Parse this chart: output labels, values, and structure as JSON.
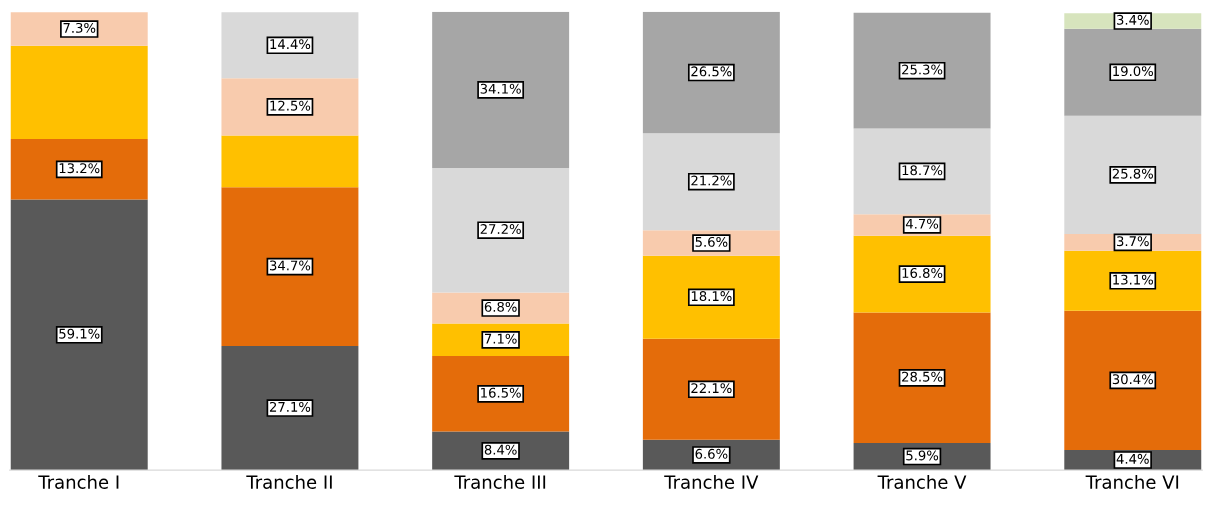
{
  "chart_data": {
    "type": "bar",
    "stacked": true,
    "categories": [
      "Tranche I",
      "Tranche II",
      "Tranche III",
      "Tranche IV",
      "Tranche V",
      "Tranche VI"
    ],
    "series": [
      {
        "color": "#595959",
        "values": [
          59.1,
          27.1,
          8.4,
          6.6,
          5.9,
          4.4
        ],
        "value_labels": [
          "59.1%",
          "27.1%",
          "8.4%",
          "6.6%",
          "5.9%",
          "4.4%"
        ]
      },
      {
        "color": "#e46c0a",
        "values": [
          13.2,
          34.7,
          16.5,
          22.1,
          28.5,
          30.4
        ],
        "value_labels": [
          "13.2%",
          "34.7%",
          "16.5%",
          "22.1%",
          "28.5%",
          "30.4%"
        ]
      },
      {
        "color": "#ffc000",
        "values": [
          20.4,
          11.3,
          7.1,
          18.1,
          16.8,
          13.1
        ],
        "value_labels": [
          null,
          null,
          "7.1%",
          "18.1%",
          "16.8%",
          "13.1%"
        ]
      },
      {
        "color": "#f8cbad",
        "values": [
          7.3,
          12.5,
          6.8,
          5.6,
          4.7,
          3.7
        ],
        "value_labels": [
          "7.3%",
          "12.5%",
          "6.8%",
          "5.6%",
          "4.7%",
          "3.7%"
        ]
      },
      {
        "color": "#d9d9d9",
        "values": [
          0,
          14.4,
          27.2,
          21.2,
          18.7,
          25.8
        ],
        "value_labels": [
          null,
          "14.4%",
          "27.2%",
          "21.2%",
          "18.7%",
          "25.8%"
        ]
      },
      {
        "color": "#a6a6a6",
        "values": [
          0,
          0,
          34.1,
          26.5,
          25.3,
          19.0
        ],
        "value_labels": [
          null,
          null,
          "34.1%",
          "26.5%",
          "25.3%",
          "19.0%"
        ]
      },
      {
        "color": "#d7e4bd",
        "values": [
          0,
          0,
          0,
          0,
          0,
          3.4
        ],
        "value_labels": [
          null,
          null,
          null,
          null,
          null,
          "3.4%"
        ]
      }
    ],
    "grid": false
  }
}
